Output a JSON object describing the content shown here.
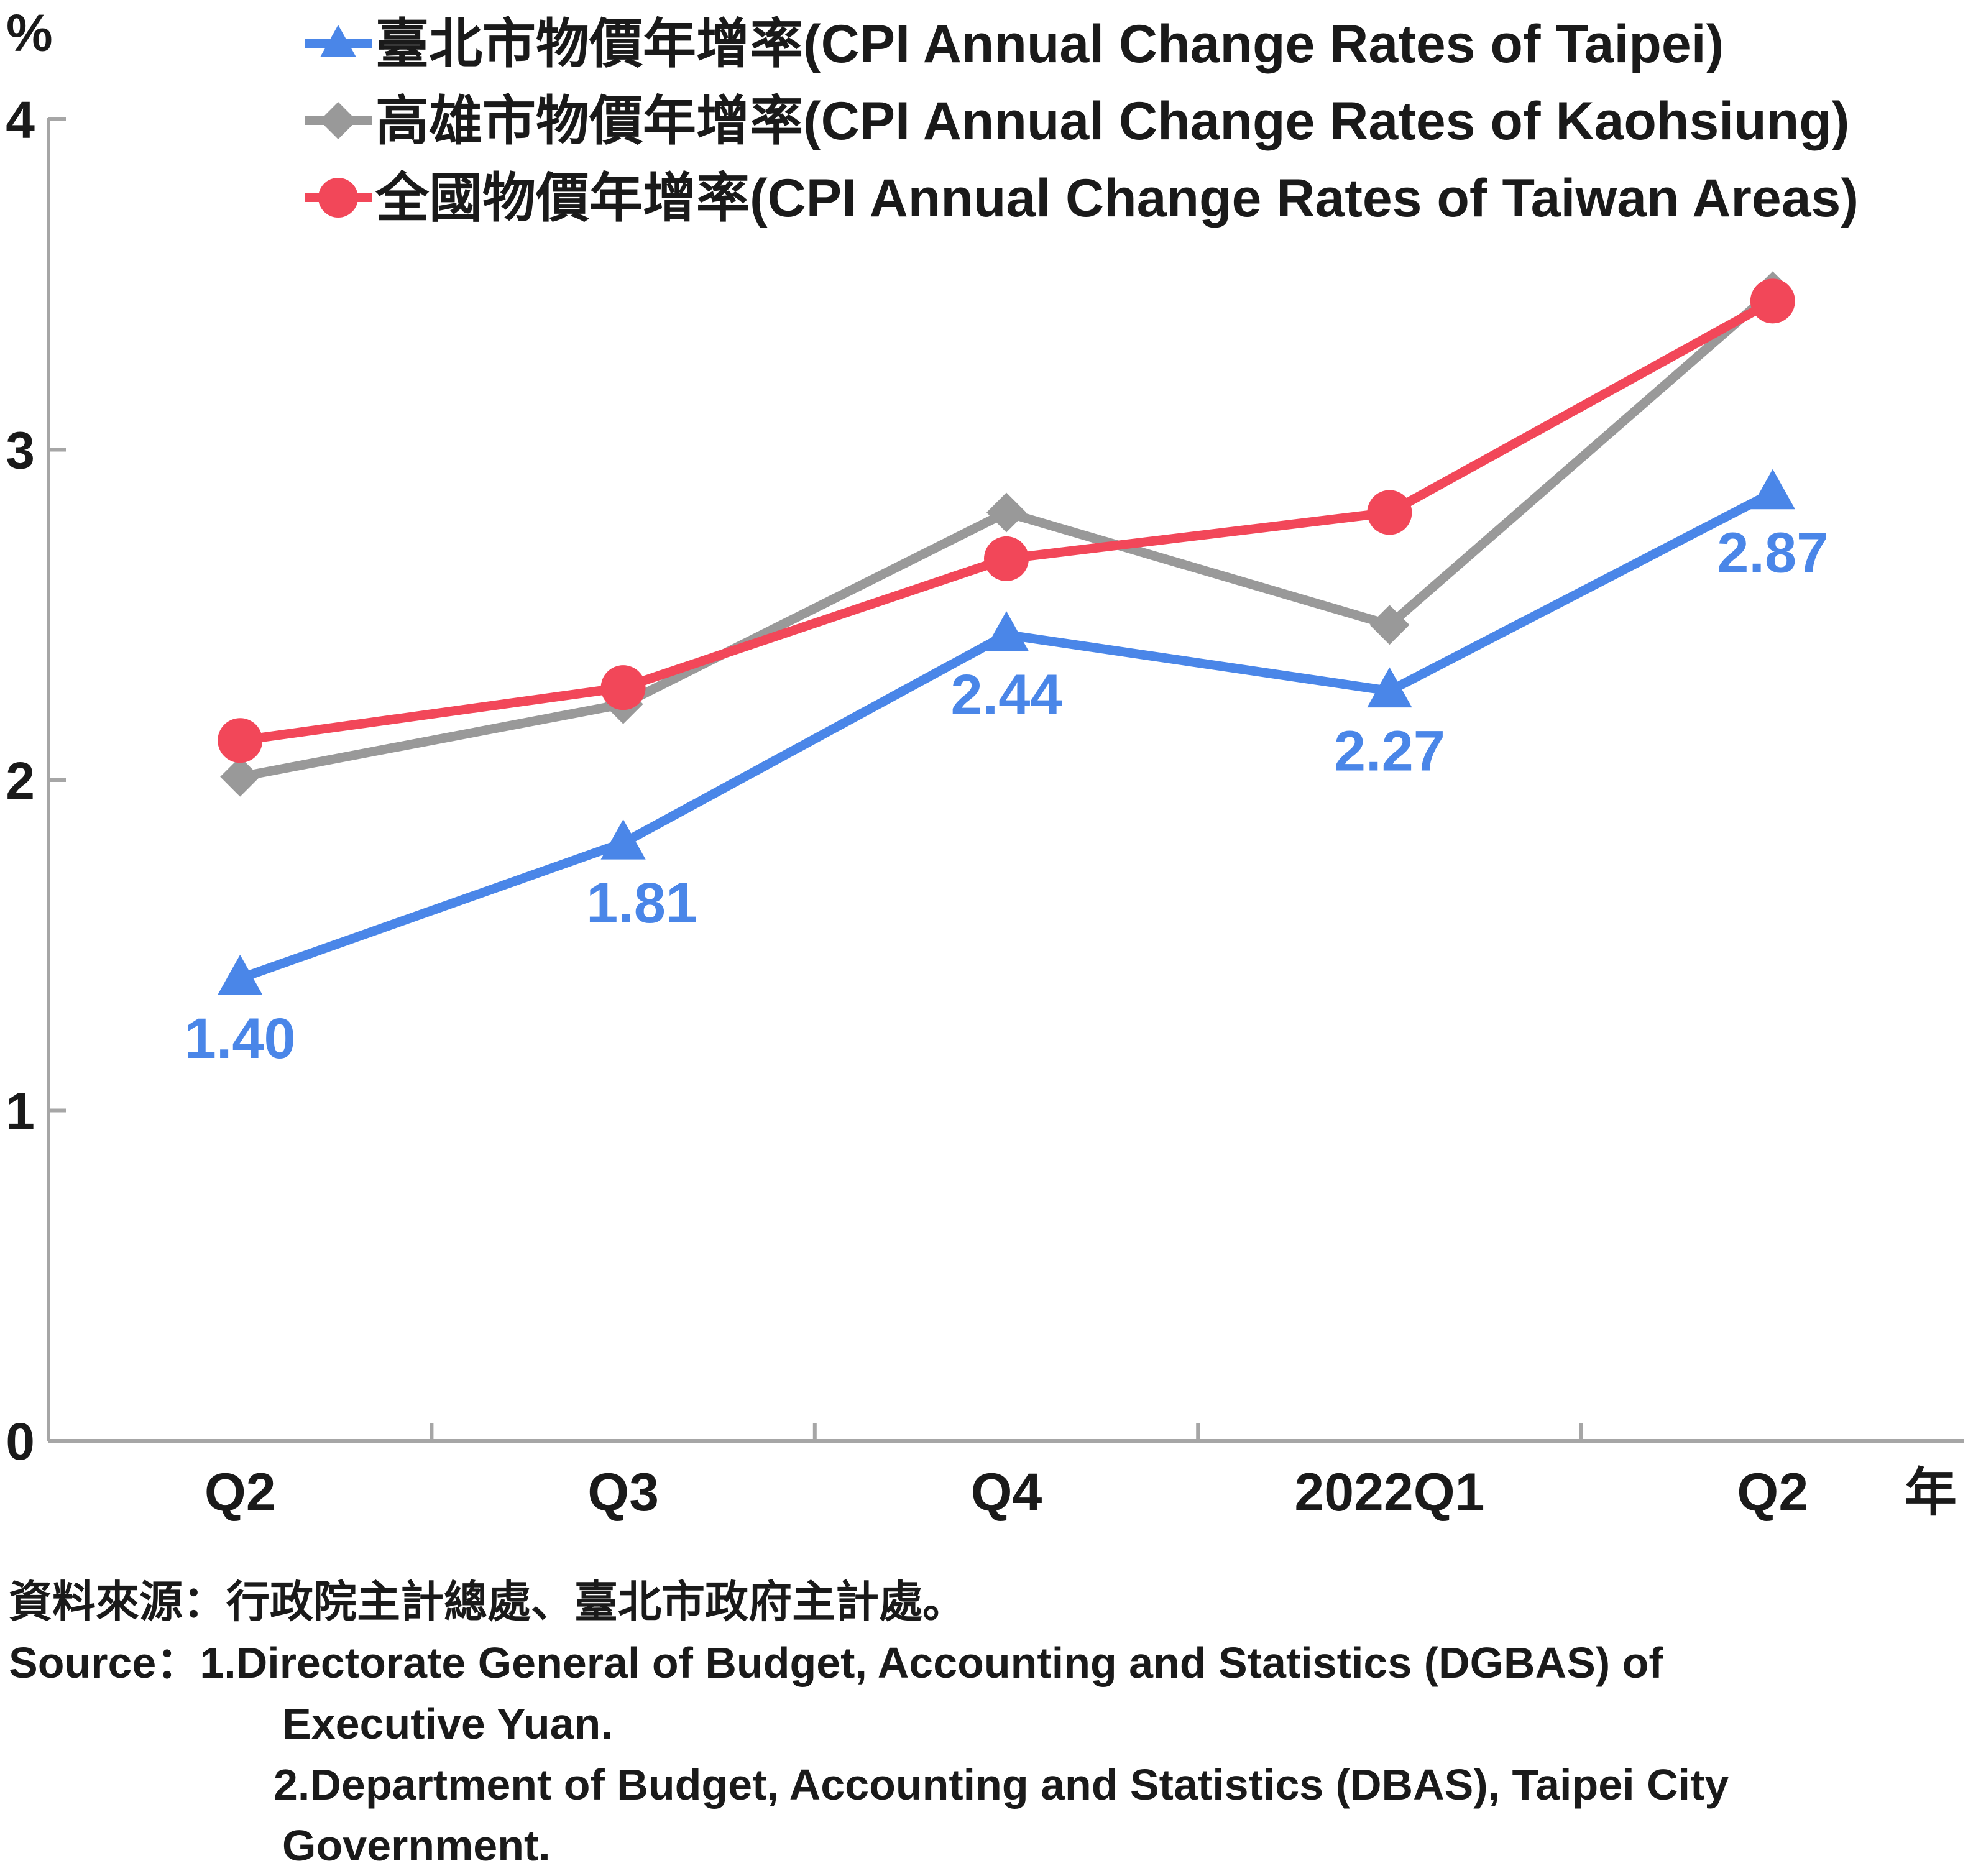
{
  "chart_data": {
    "type": "line",
    "y_unit_label": "%",
    "x_unit_label": "年",
    "categories": [
      "Q2",
      "Q3",
      "Q4",
      "2022Q1",
      "Q2"
    ],
    "ylim": [
      0,
      4
    ],
    "yticks": [
      "0",
      "1",
      "2",
      "3",
      "4"
    ],
    "grid": false,
    "legend_position": "top",
    "series": [
      {
        "name": "臺北市物價年增率(CPI Annual Change Rates of Taipei)",
        "color": "#4a86e8",
        "marker": "triangle",
        "values": [
          1.4,
          1.81,
          2.44,
          2.27,
          2.87
        ],
        "data_labels": [
          "1.40",
          "1.81",
          "2.44",
          "2.27",
          "2.87"
        ]
      },
      {
        "name": "高雄市物價年增率(CPI Annual Change Rates of Kaohsiung)",
        "color": "#999999",
        "marker": "diamond",
        "values": [
          2.01,
          2.23,
          2.81,
          2.47,
          3.48
        ]
      },
      {
        "name": "全國物價年增率(CPI Annual Change Rates of Taiwan Areas)",
        "color": "#f24759",
        "marker": "circle",
        "values": [
          2.12,
          2.28,
          2.67,
          2.81,
          3.45
        ]
      }
    ]
  },
  "source": {
    "line1": "資料來源：行政院主計總處、臺北市政府主計處。",
    "line2_prefix": "Source：",
    "line2": "1.Directorate General of Budget, Accounting and Statistics (DGBAS) of",
    "line3": "Executive Yuan.",
    "line4": "2.Department of Budget, Accounting and Statistics (DBAS), Taipei City",
    "line5": "Government."
  }
}
